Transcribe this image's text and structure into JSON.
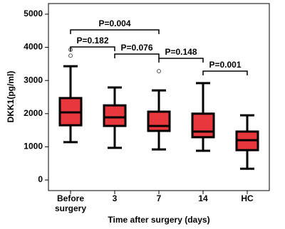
{
  "chart_data": {
    "type": "box",
    "y_label": "DKK1(pg/ml)",
    "x_label": "Time after surgery (days)",
    "categories": [
      "Before surgery",
      "3",
      "7",
      "14",
      "HC"
    ],
    "color": "#e8383d",
    "boxes": [
      {
        "whisker_low": 1140,
        "q1": 1650,
        "median": 2040,
        "q3": 2470,
        "whisker_high": 3430,
        "outliers": [
          3750,
          3930
        ]
      },
      {
        "whisker_low": 970,
        "q1": 1630,
        "median": 1890,
        "q3": 2250,
        "whisker_high": 2790,
        "outliers": []
      },
      {
        "whisker_low": 920,
        "q1": 1480,
        "median": 1630,
        "q3": 2060,
        "whisker_high": 2700,
        "outliers": [
          3280
        ]
      },
      {
        "whisker_low": 880,
        "q1": 1290,
        "median": 1460,
        "q3": 2000,
        "whisker_high": 2920,
        "outliers": []
      },
      {
        "whisker_low": 340,
        "q1": 900,
        "median": 1200,
        "q3": 1460,
        "whisker_high": 1950,
        "outliers": []
      }
    ],
    "annotations": [
      "P=0.004",
      "P=0.182",
      "P=0.076",
      "P=0.148",
      "P=0.001"
    ],
    "ylim": [
      -320,
      5320
    ],
    "yticks": [
      0,
      1000,
      2000,
      3000,
      4000,
      5000
    ]
  }
}
